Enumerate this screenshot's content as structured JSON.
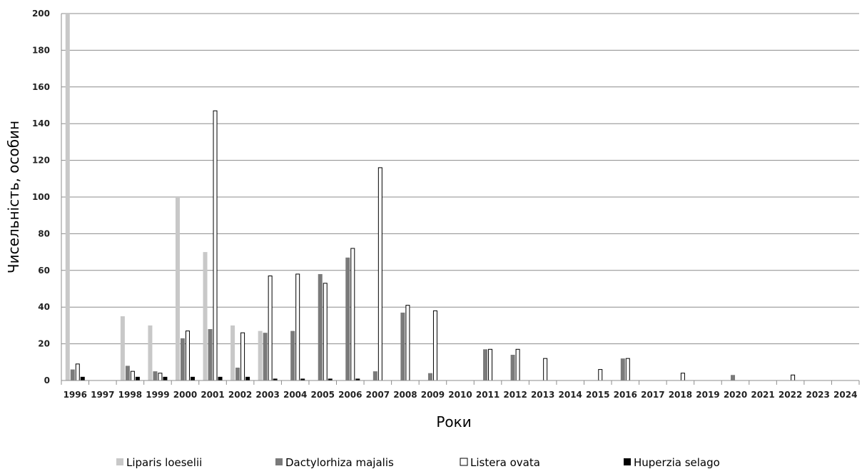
{
  "chart_data": {
    "type": "bar",
    "title": "",
    "xlabel": "Роки",
    "ylabel": "Чисельність, особин",
    "ylim": [
      0,
      200
    ],
    "yticks": [
      0,
      20,
      40,
      60,
      80,
      100,
      120,
      140,
      160,
      180,
      200
    ],
    "grid": true,
    "legend_position": "bottom",
    "categories": [
      "1996",
      "1997",
      "1998",
      "1999",
      "2000",
      "2001",
      "2002",
      "2003",
      "2004",
      "2005",
      "2006",
      "2007",
      "2008",
      "2009",
      "2010",
      "2011",
      "2012",
      "2013",
      "2014",
      "2015",
      "2016",
      "2017",
      "2018",
      "2019",
      "2020",
      "2021",
      "2022",
      "2023",
      "2024"
    ],
    "series": [
      {
        "name": "Liparis loeselii",
        "color": "#c8c8c8",
        "stroke": "none",
        "values": [
          200,
          0,
          35,
          30,
          100,
          70,
          30,
          27,
          0,
          0,
          0,
          0,
          0,
          0,
          0,
          0,
          0,
          0,
          0,
          0,
          0,
          0,
          0,
          0,
          0,
          0,
          0,
          0,
          0
        ]
      },
      {
        "name": "Dactylorhiza majalis",
        "color": "#7a7a7a",
        "stroke": "none",
        "values": [
          6,
          0,
          8,
          5,
          23,
          28,
          7,
          26,
          27,
          58,
          67,
          5,
          37,
          4,
          0,
          17,
          14,
          0,
          0,
          0,
          12,
          0,
          0,
          0,
          3,
          0,
          0,
          0,
          0
        ]
      },
      {
        "name": "Listera ovata",
        "color": "#ffffff",
        "stroke": "#000000",
        "values": [
          9,
          0,
          5,
          4,
          27,
          147,
          26,
          57,
          58,
          53,
          72,
          116,
          41,
          38,
          0,
          17,
          17,
          12,
          0,
          6,
          12,
          0,
          4,
          0,
          0,
          0,
          3,
          0,
          0
        ]
      },
      {
        "name": "Huperzia selago",
        "color": "#000000",
        "stroke": "none",
        "values": [
          2,
          0,
          2,
          2,
          2,
          2,
          2,
          1,
          1,
          1,
          1,
          0,
          0,
          0,
          0,
          0,
          0,
          0,
          0,
          0,
          0,
          0,
          0,
          0,
          0,
          0,
          0,
          0,
          0
        ]
      }
    ]
  }
}
